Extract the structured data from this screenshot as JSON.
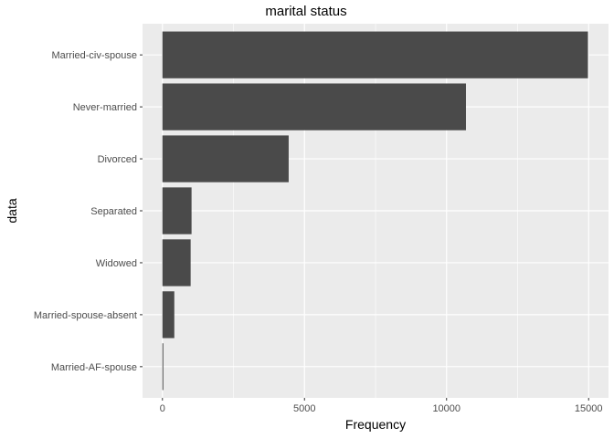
{
  "chart_data": {
    "type": "bar",
    "orientation": "horizontal",
    "title": "marital status",
    "xlabel": "Frequency",
    "ylabel": "data",
    "xlim": [
      -700,
      15700
    ],
    "x_ticks": [
      0,
      5000,
      10000,
      15000
    ],
    "x_tick_labels": [
      "0",
      "5000",
      "10000",
      "15000"
    ],
    "categories": [
      "Married-civ-spouse",
      "Never-married",
      "Divorced",
      "Separated",
      "Widowed",
      "Married-spouse-absent",
      "Married-AF-spouse"
    ],
    "values": [
      14976,
      10683,
      4443,
      1025,
      993,
      418,
      23
    ],
    "grid": true,
    "legend": "none",
    "colors": {
      "bar": "#4a4a4a",
      "panel": "#ebebeb",
      "grid": "#ffffff",
      "text": "#4d4d4d",
      "title": "#000000"
    }
  }
}
